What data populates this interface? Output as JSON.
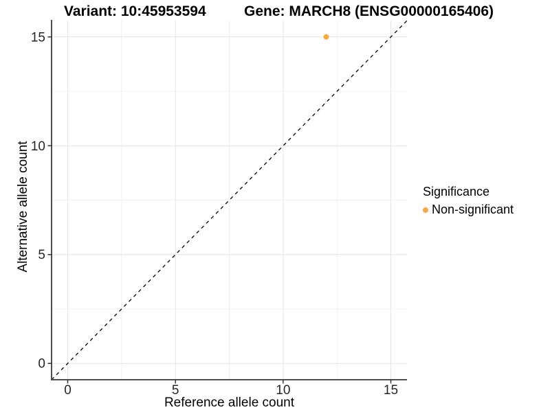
{
  "figure": {
    "title_left": "Variant: 10:45953594",
    "title_right": "Gene: MARCH8 (ENSG00000165406)"
  },
  "chart_data": {
    "type": "scatter",
    "title": "Variant: 10:45953594   Gene: MARCH8 (ENSG00000165406)",
    "xlabel": "Reference allele count",
    "ylabel": "Alternative allele count",
    "xlim": [
      0,
      15
    ],
    "ylim": [
      0,
      15
    ],
    "axis_expansion": 0.75,
    "x_ticks": [
      0,
      5,
      10,
      15
    ],
    "y_ticks": [
      0,
      5,
      10,
      15
    ],
    "x_tick_labels": [
      "0",
      "5",
      "10",
      "15"
    ],
    "y_tick_labels": [
      "0",
      "5",
      "10",
      "15"
    ],
    "grid": true,
    "grid_step": 2.5,
    "identity_line": {
      "type": "y=x",
      "style": "dashed",
      "color": "#111111"
    },
    "series": [
      {
        "name": "Non-significant",
        "color": "#F7A841",
        "points": [
          {
            "x": 12,
            "y": 15
          }
        ]
      }
    ],
    "legend": {
      "title": "Significance",
      "position": "right",
      "items": [
        {
          "label": "Non-significant",
          "color": "#F7A841"
        }
      ]
    },
    "colors": {
      "grid_major": "#e4e4e4",
      "grid_minor": "#f0f0f0",
      "axis_line": "#4d4d4d",
      "tick_mark": "#333333",
      "tick_label": "#262626",
      "background": "#ffffff"
    }
  }
}
